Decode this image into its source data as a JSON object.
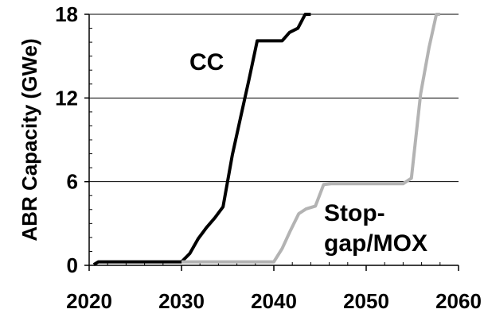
{
  "chart_data": {
    "type": "line",
    "title": "",
    "xlabel": "",
    "ylabel": "ABR Capacity (GWe)",
    "xlim": [
      2020,
      2060
    ],
    "ylim": [
      0,
      18
    ],
    "x_ticks": [
      2020,
      2030,
      2040,
      2050,
      2060
    ],
    "y_ticks": [
      0,
      6,
      12,
      18
    ],
    "x_tick_labels": [
      "2020",
      "2030",
      "2040",
      "2050",
      "2060"
    ],
    "y_tick_labels": [
      "0",
      "6",
      "12",
      "18"
    ],
    "grid": {
      "horizontal": true,
      "vertical": false
    },
    "legend": "none",
    "series": [
      {
        "name": "CC",
        "color": "#000000",
        "x": [
          2020.5,
          2021,
          2030,
          2030.9,
          2031.8,
          2032.7,
          2033.6,
          2034.5,
          2035.5,
          2036.4,
          2037.3,
          2038.2,
          2039.1,
          2040,
          2040.9,
          2041.7,
          2042.6,
          2043.4,
          2044.0
        ],
        "values": [
          0.05,
          0.25,
          0.25,
          0.85,
          1.9,
          2.7,
          3.4,
          4.2,
          7.9,
          10.6,
          13.3,
          16.1,
          16.1,
          16.1,
          16.1,
          16.7,
          17.0,
          18.0,
          18.0
        ]
      },
      {
        "name": "Stop-gap/MOX",
        "color": "#b3b3b3",
        "x": [
          2030,
          2040,
          2040.9,
          2041.8,
          2042.7,
          2043.5,
          2044.5,
          2045.4,
          2046.2,
          2054.0,
          2054.9,
          2055.9,
          2056.8,
          2057.6,
          2058.0
        ],
        "values": [
          0.25,
          0.25,
          1.2,
          2.5,
          3.7,
          4.05,
          4.25,
          5.8,
          5.85,
          5.85,
          6.25,
          12.3,
          15.6,
          18.0,
          18.0
        ]
      }
    ],
    "annotations": [
      {
        "series": "CC",
        "text": [
          "CC"
        ]
      },
      {
        "series": "Stop-gap/MOX",
        "text": [
          "Stop-",
          "gap/MOX"
        ]
      }
    ]
  }
}
